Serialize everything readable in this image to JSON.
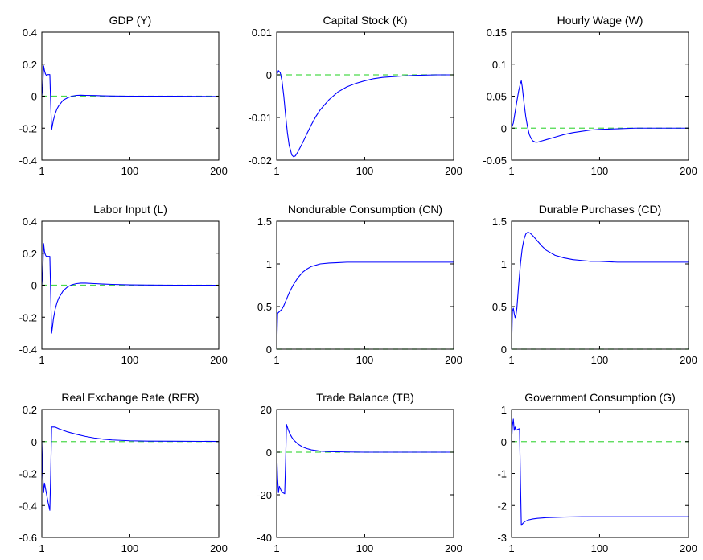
{
  "chart_data": [
    {
      "type": "line",
      "title": "GDP (Y)",
      "xlim": [
        1,
        200
      ],
      "ylim": [
        -0.4,
        0.4
      ],
      "xticks": [
        "1",
        "100",
        "200"
      ],
      "yticks": [
        "-0.4",
        "-0.2",
        "0",
        "0.2",
        "0.4"
      ],
      "baseline": 0,
      "series": [
        {
          "color": "#0000ff",
          "x": [
            1,
            2,
            3,
            4,
            5,
            6,
            8,
            10,
            11,
            12,
            13,
            14,
            16,
            18,
            20,
            25,
            30,
            35,
            40,
            45,
            50,
            60,
            70,
            80,
            100,
            120,
            150,
            200
          ],
          "y": [
            0,
            0.06,
            0.19,
            0.16,
            0.14,
            0.13,
            0.135,
            0.135,
            -0.05,
            -0.21,
            -0.18,
            -0.15,
            -0.11,
            -0.08,
            -0.06,
            -0.025,
            -0.01,
            0,
            0.005,
            0.006,
            0.005,
            0.004,
            0.002,
            0.001,
            0,
            0,
            0,
            -0.002
          ]
        }
      ],
      "baseline_color": "#4cd94c"
    },
    {
      "type": "line",
      "title": "Capital Stock (K)",
      "xlim": [
        1,
        200
      ],
      "ylim": [
        -0.02,
        0.01
      ],
      "xticks": [
        "1",
        "100",
        "200"
      ],
      "yticks": [
        "-0.02",
        "-0.01",
        "0",
        "0.01"
      ],
      "baseline": 0,
      "series": [
        {
          "color": "#0000ff",
          "x": [
            1,
            3,
            5,
            7,
            9,
            11,
            13,
            15,
            18,
            20,
            22,
            25,
            28,
            30,
            35,
            40,
            45,
            50,
            60,
            70,
            80,
            90,
            100,
            110,
            120,
            140,
            160,
            180,
            200
          ],
          "y": [
            0,
            0.001,
            0.0005,
            -0.0015,
            -0.005,
            -0.0095,
            -0.0135,
            -0.0165,
            -0.0188,
            -0.0192,
            -0.019,
            -0.018,
            -0.0168,
            -0.016,
            -0.0138,
            -0.0117,
            -0.0098,
            -0.0082,
            -0.0058,
            -0.004,
            -0.0028,
            -0.002,
            -0.0014,
            -0.0009,
            -0.0006,
            -0.0003,
            -0.0001,
            0,
            0
          ]
        }
      ],
      "baseline_color": "#4cd94c"
    },
    {
      "type": "line",
      "title": "Hourly Wage (W)",
      "xlim": [
        1,
        200
      ],
      "ylim": [
        -0.05,
        0.15
      ],
      "xticks": [
        "1",
        "100",
        "200"
      ],
      "yticks": [
        "-0.05",
        "0",
        "0.05",
        "0.1",
        "0.15"
      ],
      "baseline": 0,
      "series": [
        {
          "color": "#0000ff",
          "x": [
            1,
            3,
            5,
            7,
            9,
            11,
            12,
            13,
            15,
            17,
            19,
            21,
            23,
            25,
            28,
            30,
            35,
            40,
            50,
            60,
            70,
            80,
            90,
            100,
            120,
            140,
            160,
            200
          ],
          "y": [
            0,
            0.008,
            0.025,
            0.042,
            0.058,
            0.07,
            0.074,
            0.065,
            0.04,
            0.018,
            0.002,
            -0.01,
            -0.016,
            -0.02,
            -0.022,
            -0.022,
            -0.02,
            -0.018,
            -0.014,
            -0.01,
            -0.007,
            -0.005,
            -0.003,
            -0.002,
            -0.001,
            0,
            0,
            0
          ]
        }
      ],
      "baseline_color": "#4cd94c"
    },
    {
      "type": "line",
      "title": "Labor Input (L)",
      "xlim": [
        1,
        200
      ],
      "ylim": [
        -0.4,
        0.4
      ],
      "xticks": [
        "1",
        "100",
        "200"
      ],
      "yticks": [
        "-0.4",
        "-0.2",
        "0",
        "0.2",
        "0.4"
      ],
      "baseline": 0,
      "series": [
        {
          "color": "#0000ff",
          "x": [
            1,
            2,
            3,
            4,
            5,
            6,
            8,
            10,
            11,
            12,
            13,
            14,
            16,
            18,
            20,
            25,
            30,
            35,
            40,
            45,
            50,
            60,
            70,
            80,
            100,
            120,
            150,
            200
          ],
          "y": [
            0,
            0.08,
            0.26,
            0.21,
            0.19,
            0.18,
            0.18,
            0.18,
            -0.06,
            -0.3,
            -0.26,
            -0.21,
            -0.15,
            -0.11,
            -0.08,
            -0.035,
            -0.01,
            0.003,
            0.01,
            0.013,
            0.013,
            0.01,
            0.007,
            0.005,
            0.002,
            0.001,
            0,
            0
          ]
        }
      ],
      "baseline_color": "#4cd94c"
    },
    {
      "type": "line",
      "title": "Nondurable Consumption (CN)",
      "xlim": [
        1,
        200
      ],
      "ylim": [
        0,
        1.5
      ],
      "xticks": [
        "1",
        "100",
        "200"
      ],
      "yticks": [
        "0",
        "0.5",
        "1",
        "1.5"
      ],
      "baseline": 0,
      "series": [
        {
          "color": "#0000ff",
          "x": [
            1,
            2,
            3,
            5,
            7,
            9,
            11,
            13,
            15,
            18,
            20,
            25,
            30,
            35,
            40,
            50,
            60,
            70,
            80,
            90,
            100,
            120,
            150,
            200
          ],
          "y": [
            0,
            0.42,
            0.43,
            0.45,
            0.47,
            0.51,
            0.56,
            0.61,
            0.66,
            0.72,
            0.76,
            0.84,
            0.9,
            0.94,
            0.97,
            1.0,
            1.01,
            1.015,
            1.02,
            1.02,
            1.02,
            1.02,
            1.02,
            1.02
          ]
        }
      ],
      "baseline_color": "#4cd94c"
    },
    {
      "type": "line",
      "title": "Durable Purchases (CD)",
      "xlim": [
        1,
        200
      ],
      "ylim": [
        0,
        1.5
      ],
      "xticks": [
        "1",
        "100",
        "200"
      ],
      "yticks": [
        "0",
        "0.5",
        "1",
        "1.5"
      ],
      "baseline": 0,
      "series": [
        {
          "color": "#0000ff",
          "x": [
            1,
            2,
            3,
            4,
            5,
            6,
            7,
            9,
            11,
            13,
            15,
            17,
            19,
            20,
            22,
            25,
            30,
            35,
            40,
            50,
            60,
            70,
            80,
            90,
            100,
            120,
            150,
            200
          ],
          "y": [
            0,
            0.45,
            0.48,
            0.42,
            0.37,
            0.4,
            0.48,
            0.75,
            1.0,
            1.18,
            1.29,
            1.35,
            1.37,
            1.37,
            1.36,
            1.33,
            1.27,
            1.21,
            1.16,
            1.1,
            1.07,
            1.05,
            1.04,
            1.03,
            1.03,
            1.02,
            1.02,
            1.02
          ]
        }
      ],
      "baseline_color": "#4cd94c"
    },
    {
      "type": "line",
      "title": "Real Exchange Rate (RER)",
      "xlim": [
        1,
        200
      ],
      "ylim": [
        -0.6,
        0.2
      ],
      "xticks": [
        "1",
        "100",
        "200"
      ],
      "yticks": [
        "-0.6",
        "-0.4",
        "-0.2",
        "0",
        "0.2"
      ],
      "baseline": 0,
      "series": [
        {
          "color": "#0000ff",
          "x": [
            1,
            2,
            3,
            4,
            5,
            6,
            8,
            10,
            11,
            12,
            14,
            16,
            20,
            25,
            30,
            40,
            50,
            60,
            70,
            80,
            100,
            120,
            150,
            200
          ],
          "y": [
            0,
            -0.2,
            -0.32,
            -0.26,
            -0.29,
            -0.32,
            -0.38,
            -0.43,
            -0.2,
            0.09,
            0.09,
            0.09,
            0.08,
            0.07,
            0.06,
            0.045,
            0.032,
            0.022,
            0.015,
            0.01,
            0.005,
            0.003,
            0.002,
            0.001
          ]
        }
      ],
      "baseline_color": "#4cd94c"
    },
    {
      "type": "line",
      "title": "Trade Balance (TB)",
      "xlim": [
        1,
        200
      ],
      "ylim": [
        -40,
        20
      ],
      "xticks": [
        "1",
        "100",
        "200"
      ],
      "yticks": [
        "-40",
        "-20",
        "0",
        "20"
      ],
      "baseline": 0,
      "series": [
        {
          "color": "#0000ff",
          "x": [
            1,
            2,
            3,
            4,
            5,
            6,
            8,
            10,
            11,
            12,
            14,
            16,
            18,
            20,
            25,
            30,
            35,
            40,
            50,
            60,
            80,
            100,
            150,
            200
          ],
          "y": [
            0,
            -12,
            -19,
            -16,
            -17,
            -18,
            -19,
            -19.5,
            -5,
            13,
            10.5,
            8.5,
            7,
            5.8,
            3.8,
            2.5,
            1.7,
            1.1,
            0.5,
            0.25,
            0.1,
            0,
            0,
            0
          ]
        }
      ],
      "baseline_color": "#4cd94c"
    },
    {
      "type": "line",
      "title": "Government Consumption (G)",
      "xlim": [
        1,
        200
      ],
      "ylim": [
        -3,
        1
      ],
      "xticks": [
        "1",
        "100",
        "200"
      ],
      "yticks": [
        "-3",
        "-2",
        "-1",
        "0",
        "1"
      ],
      "baseline": 0,
      "series": [
        {
          "color": "#0000ff",
          "x": [
            1,
            2,
            3,
            4,
            5,
            6,
            8,
            10,
            11,
            12,
            14,
            16,
            20,
            25,
            30,
            40,
            50,
            60,
            80,
            100,
            150,
            200
          ],
          "y": [
            0,
            0.5,
            0.7,
            0.35,
            0.45,
            0.35,
            0.38,
            0.4,
            -1.2,
            -2.62,
            -2.55,
            -2.5,
            -2.45,
            -2.42,
            -2.4,
            -2.38,
            -2.37,
            -2.36,
            -2.35,
            -2.35,
            -2.35,
            -2.35
          ]
        }
      ],
      "baseline_color": "#4cd94c"
    }
  ]
}
